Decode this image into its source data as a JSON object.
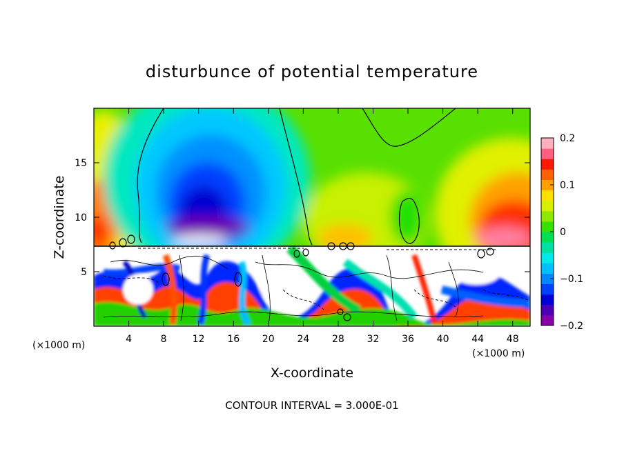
{
  "chart_data": {
    "type": "heatmap",
    "title": "disturbunce of potential temperature",
    "xlabel": "X-coordinate",
    "ylabel": "Z-coordinate",
    "x_unit_label": "(×1000 m)",
    "z_unit_label": "(×1000 m)",
    "footer": "CONTOUR INTERVAL = 3.000E-01",
    "xlim": [
      0,
      50
    ],
    "ylim": [
      0,
      20
    ],
    "x_ticks": [
      4,
      8,
      12,
      16,
      20,
      24,
      28,
      32,
      36,
      40,
      44,
      48
    ],
    "x_tick_labels": [
      "4",
      "8",
      "12",
      "16",
      "20",
      "24",
      "28",
      "32",
      "36",
      "40",
      "44",
      "48"
    ],
    "y_ticks": [
      5,
      10,
      15
    ],
    "y_tick_labels": [
      "5",
      "10",
      "15"
    ],
    "colorbar": {
      "min": -0.2,
      "max": 0.2,
      "ticks": [
        0.2,
        0.1,
        0,
        -0.1,
        -0.2
      ],
      "tick_labels": [
        "0.2",
        "0.1",
        "0",
        "−0.1",
        "−0.2"
      ],
      "colors": [
        "#8a00a8",
        "#4b00b4",
        "#0000d8",
        "#0040ff",
        "#0088ff",
        "#00c0ff",
        "#00e8e8",
        "#00e0a0",
        "#00e050",
        "#38e000",
        "#90e800",
        "#d8f000",
        "#ffe000",
        "#ffa000",
        "#ff6000",
        "#ff1800",
        "#ff6080",
        "#ffb0c0"
      ]
    },
    "grid": false,
    "legend": "right"
  }
}
